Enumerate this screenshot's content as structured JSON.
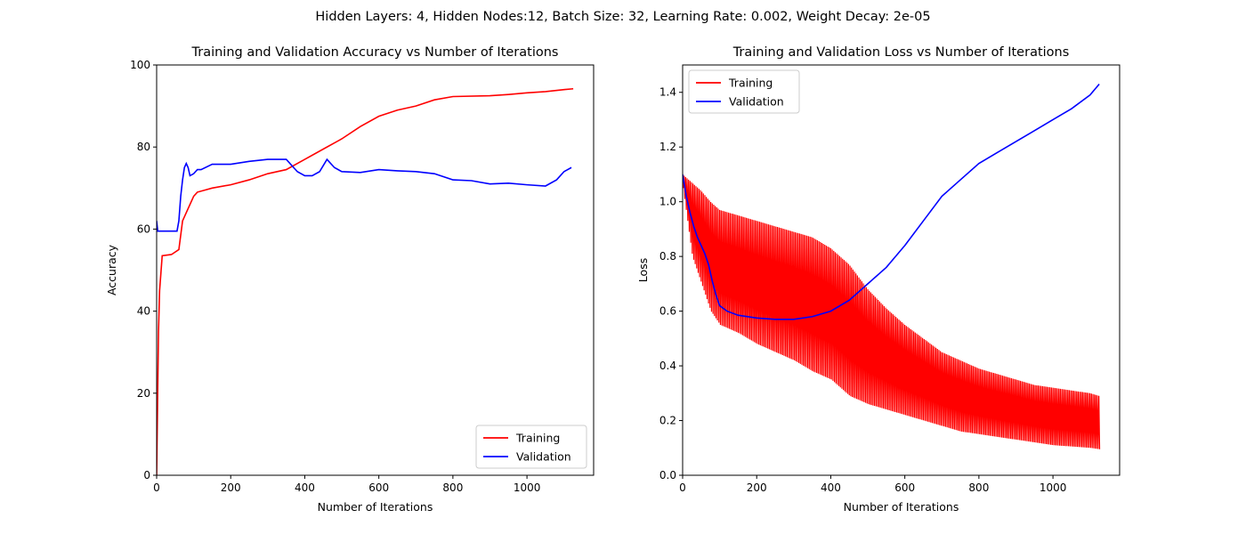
{
  "figure": {
    "suptitle": "Hidden Layers: 4, Hidden Nodes:12, Batch Size: 32, Learning Rate: 0.002, Weight Decay: 2e-05"
  },
  "chart_data": [
    {
      "type": "line",
      "title": "Training and Validation Accuracy vs Number of Iterations",
      "xlabel": "Number of Iterations",
      "ylabel": "Accuracy",
      "xlim": [
        0,
        1180
      ],
      "ylim": [
        0,
        100
      ],
      "xticks": [
        0,
        200,
        400,
        600,
        800,
        1000
      ],
      "yticks": [
        0,
        20,
        40,
        60,
        80,
        100
      ],
      "grid": false,
      "legend_position": "lower-right",
      "series": [
        {
          "name": "Training",
          "color": "#ff0000",
          "x": [
            0,
            5,
            8,
            15,
            40,
            60,
            70,
            80,
            90,
            100,
            110,
            130,
            150,
            200,
            250,
            300,
            350,
            400,
            450,
            500,
            550,
            600,
            650,
            700,
            750,
            800,
            900,
            950,
            1000,
            1050,
            1100,
            1125
          ],
          "y": [
            0,
            35,
            45,
            53.5,
            53.8,
            55,
            62,
            64,
            66,
            68,
            69,
            69.5,
            70,
            70.8,
            72,
            73.5,
            74.5,
            77,
            79.5,
            82,
            85,
            87.5,
            89,
            90,
            91.5,
            92.3,
            92.5,
            92.8,
            93.2,
            93.5,
            94,
            94.2
          ]
        },
        {
          "name": "Validation",
          "color": "#0000ff",
          "x": [
            0,
            3,
            10,
            30,
            55,
            60,
            65,
            70,
            75,
            80,
            85,
            90,
            100,
            110,
            120,
            150,
            200,
            250,
            300,
            350,
            380,
            400,
            420,
            440,
            460,
            480,
            500,
            550,
            600,
            650,
            700,
            750,
            800,
            850,
            900,
            950,
            1000,
            1050,
            1080,
            1100,
            1120
          ],
          "y": [
            62,
            59.5,
            59.5,
            59.5,
            59.5,
            62,
            68,
            72,
            75,
            76,
            75,
            73,
            73.5,
            74.5,
            74.5,
            75.8,
            75.8,
            76.5,
            77,
            77,
            74,
            73,
            73,
            74,
            77,
            75,
            74,
            73.8,
            74.5,
            74.2,
            74,
            73.5,
            72,
            71.8,
            71,
            71.2,
            70.8,
            70.5,
            72,
            74,
            75
          ]
        }
      ]
    },
    {
      "type": "line",
      "title": "Training and Validation Loss vs Number of Iterations",
      "xlabel": "Number of Iterations",
      "ylabel": "Loss",
      "xlim": [
        0,
        1180
      ],
      "ylim": [
        0.0,
        1.5
      ],
      "xticks": [
        0,
        200,
        400,
        600,
        800,
        1000
      ],
      "yticks": [
        0.0,
        0.2,
        0.4,
        0.6,
        0.8,
        1.0,
        1.2,
        1.4
      ],
      "grid": false,
      "legend_position": "upper-left",
      "series": [
        {
          "name": "Training",
          "color": "#ff0000",
          "oscillating": true,
          "x": [
            0,
            25,
            50,
            75,
            100,
            150,
            200,
            250,
            300,
            350,
            400,
            450,
            500,
            550,
            600,
            650,
            700,
            750,
            800,
            850,
            900,
            950,
            1000,
            1050,
            1100,
            1125
          ],
          "y_upper": [
            1.1,
            1.07,
            1.04,
            1.0,
            0.97,
            0.95,
            0.93,
            0.91,
            0.89,
            0.87,
            0.83,
            0.77,
            0.68,
            0.61,
            0.55,
            0.5,
            0.45,
            0.42,
            0.39,
            0.37,
            0.35,
            0.33,
            0.32,
            0.31,
            0.3,
            0.29
          ],
          "y_lower": [
            1.05,
            0.8,
            0.7,
            0.6,
            0.55,
            0.52,
            0.48,
            0.45,
            0.42,
            0.38,
            0.35,
            0.29,
            0.26,
            0.24,
            0.22,
            0.2,
            0.18,
            0.16,
            0.15,
            0.14,
            0.13,
            0.12,
            0.11,
            0.105,
            0.1,
            0.095
          ]
        },
        {
          "name": "Validation",
          "color": "#0000ff",
          "x": [
            0,
            10,
            20,
            30,
            40,
            50,
            60,
            70,
            80,
            90,
            100,
            120,
            150,
            200,
            250,
            300,
            350,
            400,
            450,
            500,
            550,
            600,
            650,
            700,
            750,
            800,
            850,
            900,
            950,
            1000,
            1050,
            1100,
            1125
          ],
          "y": [
            1.1,
            1.02,
            0.96,
            0.91,
            0.87,
            0.84,
            0.81,
            0.77,
            0.71,
            0.66,
            0.62,
            0.6,
            0.585,
            0.575,
            0.57,
            0.57,
            0.58,
            0.6,
            0.64,
            0.7,
            0.76,
            0.84,
            0.93,
            1.02,
            1.08,
            1.14,
            1.18,
            1.22,
            1.26,
            1.3,
            1.34,
            1.39,
            1.43
          ]
        }
      ]
    }
  ]
}
